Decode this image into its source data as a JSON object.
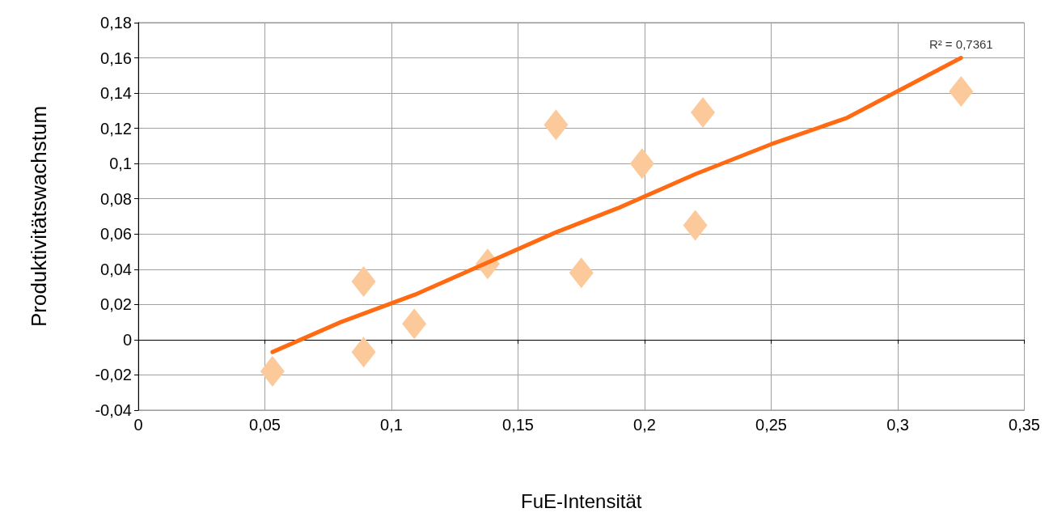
{
  "chart_data": {
    "type": "scatter",
    "xlabel": "FuE-Intensität",
    "ylabel": "Produktivitätswachstum",
    "series": [
      {
        "color": "#fcc99b",
        "marker": "diamond",
        "x": [
          0.053,
          0.089,
          0.089,
          0.109,
          0.138,
          0.165,
          0.175,
          0.199,
          0.22,
          0.223,
          0.325
        ],
        "values": [
          -0.018,
          -0.007,
          0.033,
          0.009,
          0.043,
          0.122,
          0.038,
          0.1,
          0.065,
          0.129,
          0.141
        ]
      },
      {
        "type": "line",
        "color": "#ff6a13",
        "marker": "none",
        "x": [
          0.053,
          0.08,
          0.11,
          0.165,
          0.19,
          0.22,
          0.25,
          0.28,
          0.325
        ],
        "values": [
          -0.007,
          0.01,
          0.026,
          0.061,
          0.075,
          0.094,
          0.111,
          0.126,
          0.16
        ]
      }
    ],
    "annotations": [
      {
        "text": "R² = 0,7361",
        "x": 0.325,
        "y": 0.16
      }
    ],
    "xlim": [
      0,
      0.35
    ],
    "xticks": [
      {
        "value": 0,
        "label": "0"
      },
      {
        "value": 0.05,
        "label": "0,05"
      },
      {
        "value": 0.1,
        "label": "0,1"
      },
      {
        "value": 0.15,
        "label": "0,15"
      },
      {
        "value": 0.2,
        "label": "0,2"
      },
      {
        "value": 0.25,
        "label": "0,25"
      },
      {
        "value": 0.3,
        "label": "0,3"
      },
      {
        "value": 0.35,
        "label": "0,35"
      }
    ],
    "ylim": [
      -0.04,
      0.18
    ],
    "yticks": [
      {
        "value": -0.04,
        "label": "-0,04"
      },
      {
        "value": -0.02,
        "label": "-0,02"
      },
      {
        "value": 0,
        "label": "0"
      },
      {
        "value": 0.02,
        "label": "0,02"
      },
      {
        "value": 0.04,
        "label": "0,04"
      },
      {
        "value": 0.06,
        "label": "0,06"
      },
      {
        "value": 0.08,
        "label": "0,08"
      },
      {
        "value": 0.1,
        "label": "0,1"
      },
      {
        "value": 0.12,
        "label": "0,12"
      },
      {
        "value": 0.14,
        "label": "0,14"
      },
      {
        "value": 0.16,
        "label": "0,16"
      },
      {
        "value": 0.18,
        "label": "0,18"
      }
    ],
    "grid": true
  }
}
